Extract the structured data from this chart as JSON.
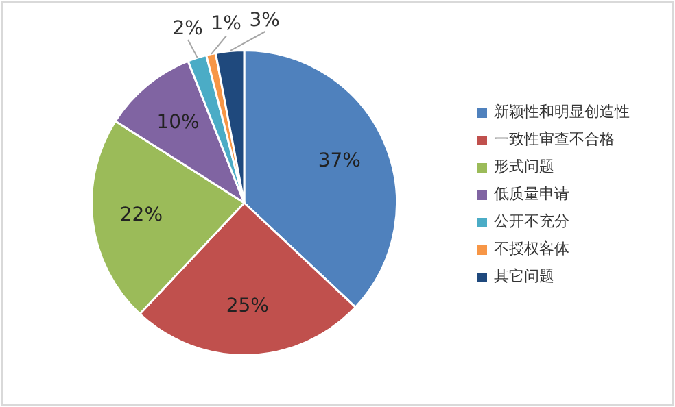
{
  "chart_data": {
    "type": "pie",
    "categories": [
      "新颖性和明显创造性",
      "一致性审查不合格",
      "形式问题",
      "低质量申请",
      "公开不充分",
      "不授权客体",
      "其它问题"
    ],
    "values": [
      37,
      25,
      22,
      10,
      2,
      1,
      3
    ],
    "colors": [
      "#4f81bd",
      "#c0504d",
      "#9bbb59",
      "#8064a2",
      "#4bacc6",
      "#f79646",
      "#1f497d"
    ],
    "value_labels": [
      "37%",
      "25%",
      "22%",
      "10%",
      "2%",
      "1%",
      "3%"
    ],
    "legend": "right"
  }
}
